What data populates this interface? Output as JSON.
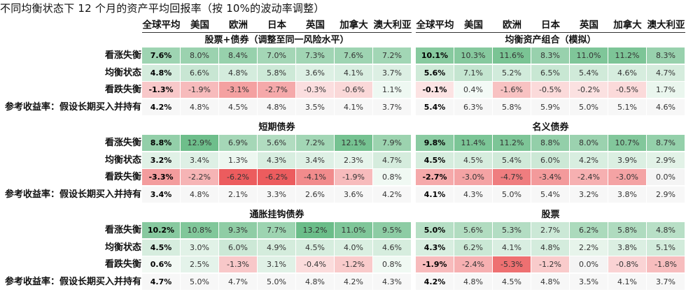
{
  "title": "不同均衡状态下 12 个月的资产平均回报率（按 10%的波动率调整）",
  "columns": [
    "全球平均",
    "美国",
    "欧洲",
    "日本",
    "英国",
    "加拿大",
    "澳大利亚"
  ],
  "row_labels": [
    "看涨失衡",
    "均衡状态",
    "看跌失衡",
    "参考收益率：假设长期买入并持有"
  ],
  "chart_data": [
    {
      "type": "table",
      "title": "股票+债券（调整至同一风险水平）",
      "rows": [
        [
          7.6,
          8.0,
          8.4,
          7.0,
          7.3,
          7.6,
          7.2
        ],
        [
          4.8,
          6.6,
          4.8,
          5.8,
          3.6,
          4.1,
          3.7
        ],
        [
          -1.3,
          -1.9,
          -3.1,
          -2.7,
          -0.3,
          -0.6,
          1.1
        ],
        [
          4.2,
          4.8,
          4.5,
          4.8,
          3.5,
          4.1,
          3.7
        ]
      ]
    },
    {
      "type": "table",
      "title": "均衡资产组合（模拟）",
      "rows": [
        [
          10.1,
          10.3,
          11.6,
          8.3,
          11.0,
          11.2,
          8.3
        ],
        [
          5.6,
          7.1,
          5.2,
          6.5,
          5.4,
          4.6,
          4.7
        ],
        [
          -0.1,
          0.4,
          -1.6,
          -0.5,
          -0.2,
          -0.5,
          1.7
        ],
        [
          5.4,
          6.3,
          5.8,
          5.9,
          5.0,
          5.1,
          4.6
        ]
      ]
    },
    {
      "type": "table",
      "title": "短期债券",
      "rows": [
        [
          8.8,
          12.9,
          6.9,
          5.6,
          7.2,
          12.1,
          7.9
        ],
        [
          3.2,
          3.4,
          1.3,
          4.3,
          3.4,
          2.3,
          4.7
        ],
        [
          -3.3,
          -2.2,
          -6.2,
          -6.2,
          -4.1,
          -1.9,
          0.8
        ],
        [
          3.4,
          4.8,
          2.1,
          3.3,
          2.6,
          3.6,
          4.2
        ]
      ]
    },
    {
      "type": "table",
      "title": "名义债券",
      "rows": [
        [
          9.8,
          11.4,
          11.2,
          8.8,
          8.0,
          10.7,
          8.7
        ],
        [
          4.5,
          4.5,
          5.4,
          6.0,
          4.2,
          3.9,
          2.9
        ],
        [
          -2.7,
          -3.0,
          -4.7,
          -3.4,
          -2.4,
          -3.0,
          0.0
        ],
        [
          4.1,
          4.3,
          5.0,
          5.4,
          3.2,
          3.8,
          2.9
        ]
      ]
    },
    {
      "type": "table",
      "title": "通胀挂钩债券",
      "rows": [
        [
          10.2,
          10.8,
          9.3,
          7.7,
          13.2,
          11.0,
          9.5
        ],
        [
          4.5,
          3.0,
          6.0,
          4.9,
          4.5,
          4.0,
          4.6
        ],
        [
          0.6,
          2.5,
          -1.3,
          3.1,
          -0.4,
          -1.2,
          0.8
        ],
        [
          4.7,
          5.0,
          4.7,
          5.0,
          4.8,
          4.2,
          4.3
        ]
      ]
    },
    {
      "type": "table",
      "title": "股票",
      "rows": [
        [
          5.0,
          5.6,
          5.3,
          2.7,
          6.2,
          5.8,
          4.8
        ],
        [
          4.3,
          6.2,
          4.1,
          4.8,
          2.2,
          3.8,
          5.1
        ],
        [
          -1.9,
          -2.4,
          -5.3,
          -1.2,
          0.0,
          -0.8,
          -1.8
        ],
        [
          4.2,
          4.8,
          4.5,
          4.8,
          3.5,
          4.1,
          3.7
        ]
      ]
    }
  ],
  "colors": {
    "positive": "#1e9b4b",
    "negative": "#e52628",
    "neutral": "#ffffff"
  }
}
